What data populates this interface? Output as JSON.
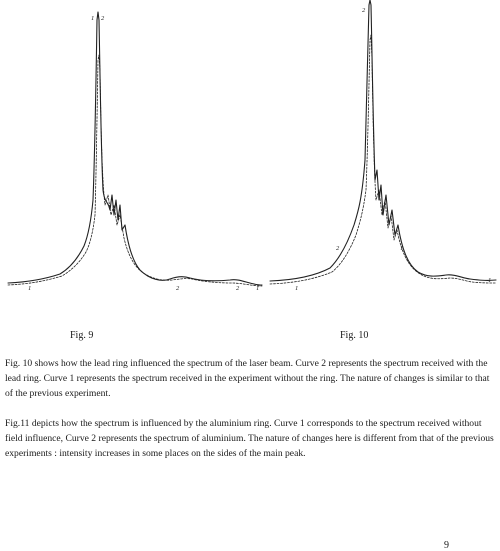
{
  "figures": {
    "fig9": {
      "caption": "Fig. 9",
      "curve_labels": [
        "1",
        "2"
      ]
    },
    "fig10": {
      "caption": "Fig. 10",
      "curve_labels": [
        "1",
        "2"
      ]
    }
  },
  "paragraphs": [
    "Fig. 10 shows how the lead ring influenced the spectrum of the laser beam. Curve 2 represents the spectrum received with the lead ring. Curve 1 represents the spectrum received in the experiment without the ring. The nature of changes is similar to that of the previous experiment.",
    "Fig.11 depicts how the spectrum is influenced by the aluminium ring. Curve 1 corresponds to the spectrum received without field influence, Curve 2 represents the spectrum of aluminium. The nature of changes here is different from that of the previous experiments : intensity increases in some places on the sides of the main peak."
  ],
  "page_number": "9"
}
